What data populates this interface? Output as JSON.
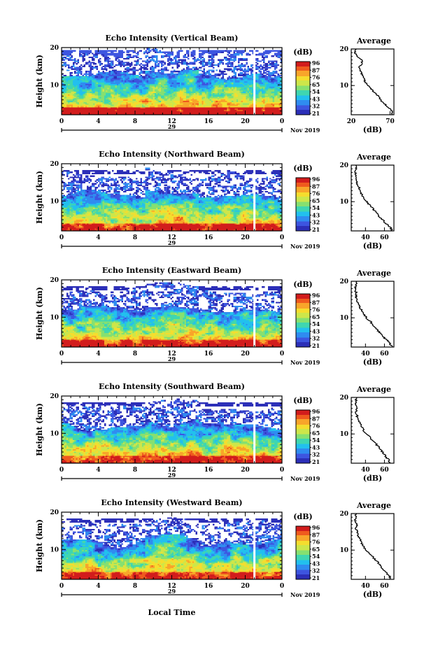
{
  "figure": {
    "xlabel": "Local Time",
    "colorbar_label": "(dB)",
    "colorbar_ticks": [
      "96",
      "87",
      "76",
      "65",
      "54",
      "43",
      "32",
      "21"
    ],
    "date_label": "Nov 2019",
    "day_label": "29",
    "average_title": "Average",
    "average_xlabel": "(dB)",
    "palette": [
      "#2c2fb8",
      "#3d55e0",
      "#2f8cf0",
      "#22c0ee",
      "#3fd6b0",
      "#86e070",
      "#cde64a",
      "#f5dd2e",
      "#f8a52a",
      "#ef5a1e",
      "#d21c1c"
    ],
    "data_gap_hour": 21.0
  },
  "chart_data": [
    {
      "type": "heatmap",
      "title": "Echo Intensity (Vertical Beam)",
      "xlabel": "",
      "ylabel": "Height (km)",
      "xlim": [
        0,
        24
      ],
      "ylim": [
        2,
        20
      ],
      "x_ticks": [
        "0",
        "4",
        "8",
        "12",
        "16",
        "20",
        "0"
      ],
      "y_ticks": [
        "10",
        "20"
      ],
      "colorbar": {
        "label": "(dB)",
        "range": [
          21,
          96
        ],
        "ticks": [
          "96",
          "87",
          "76",
          "65",
          "54",
          "43",
          "32",
          "21"
        ]
      },
      "profile": {
        "title": "Average",
        "xlabel": "(dB)",
        "xlim": [
          20,
          75
        ],
        "x_ticks": [
          "20",
          "70"
        ],
        "y_ticks": [
          "10",
          "20"
        ],
        "height_km": [
          2.0,
          3.0,
          4.0,
          5.0,
          6.0,
          7.0,
          8.0,
          9.0,
          10.0,
          11.0,
          12.0,
          13.0,
          14.0,
          15.0,
          16.0,
          17.0,
          18.0,
          19.0,
          20.0
        ],
        "db": [
          72,
          73,
          68,
          63,
          58,
          56,
          50,
          46,
          42,
          38,
          36,
          34,
          32,
          30,
          34,
          34,
          28,
          25,
          26
        ]
      }
    },
    {
      "type": "heatmap",
      "title": "Echo Intensity (Northward Beam)",
      "xlabel": "",
      "ylabel": "Height (km)",
      "xlim": [
        0,
        24
      ],
      "ylim": [
        2,
        20
      ],
      "x_ticks": [
        "0",
        "4",
        "8",
        "12",
        "16",
        "20",
        "0"
      ],
      "y_ticks": [
        "10",
        "20"
      ],
      "colorbar": {
        "label": "(dB)",
        "range": [
          21,
          96
        ],
        "ticks": [
          "96",
          "87",
          "76",
          "65",
          "54",
          "43",
          "32",
          "21"
        ]
      },
      "profile": {
        "title": "Average",
        "xlabel": "(dB)",
        "xlim": [
          25,
          70
        ],
        "x_ticks": [
          "40",
          "60"
        ],
        "y_ticks": [
          "10",
          "20"
        ],
        "height_km": [
          2.0,
          3.0,
          4.0,
          5.0,
          6.0,
          7.0,
          8.0,
          9.0,
          10.0,
          11.0,
          12.0,
          13.0,
          14.0,
          15.0,
          16.0,
          17.0,
          18.0,
          19.0,
          20.0
        ],
        "db": [
          68,
          66,
          62,
          58,
          54,
          52,
          48,
          45,
          41,
          38,
          36,
          34,
          33,
          31,
          30,
          30,
          29,
          30,
          30
        ]
      }
    },
    {
      "type": "heatmap",
      "title": "Echo Intensity (Eastward Beam)",
      "xlabel": "",
      "ylabel": "Height (km)",
      "xlim": [
        0,
        24
      ],
      "ylim": [
        2,
        20
      ],
      "x_ticks": [
        "0",
        "4",
        "8",
        "12",
        "16",
        "20",
        "0"
      ],
      "y_ticks": [
        "10",
        "20"
      ],
      "colorbar": {
        "label": "(dB)",
        "range": [
          21,
          96
        ],
        "ticks": [
          "96",
          "87",
          "76",
          "65",
          "54",
          "43",
          "32",
          "21"
        ]
      },
      "profile": {
        "title": "Average",
        "xlabel": "(dB)",
        "xlim": [
          25,
          70
        ],
        "x_ticks": [
          "40",
          "60"
        ],
        "y_ticks": [
          "10",
          "20"
        ],
        "height_km": [
          2.0,
          3.0,
          4.0,
          5.0,
          6.0,
          7.0,
          8.0,
          9.0,
          10.0,
          11.0,
          12.0,
          13.0,
          14.0,
          15.0,
          16.0,
          17.0,
          18.0,
          19.0,
          20.0
        ],
        "db": [
          68,
          66,
          62,
          58,
          55,
          51,
          48,
          45,
          41,
          38,
          36,
          34,
          32,
          31,
          30,
          30,
          29,
          30,
          30
        ]
      }
    },
    {
      "type": "heatmap",
      "title": "Echo Intensity (Southward Beam)",
      "xlabel": "",
      "ylabel": "Height (km)",
      "xlim": [
        0,
        24
      ],
      "ylim": [
        2,
        20
      ],
      "x_ticks": [
        "0",
        "4",
        "8",
        "12",
        "16",
        "20",
        "0"
      ],
      "y_ticks": [
        "10",
        "20"
      ],
      "colorbar": {
        "label": "(dB)",
        "range": [
          21,
          96
        ],
        "ticks": [
          "96",
          "87",
          "76",
          "65",
          "54",
          "43",
          "32",
          "21"
        ]
      },
      "profile": {
        "title": "Average",
        "xlabel": "(dB)",
        "xlim": [
          25,
          70
        ],
        "x_ticks": [
          "40",
          "60"
        ],
        "y_ticks": [
          "10",
          "20"
        ],
        "height_km": [
          2.0,
          3.0,
          4.0,
          5.0,
          6.0,
          7.0,
          8.0,
          9.0,
          10.0,
          11.0,
          12.0,
          13.0,
          14.0,
          15.0,
          16.0,
          17.0,
          18.0,
          19.0,
          20.0
        ],
        "db": [
          66,
          64,
          61,
          58,
          55,
          52,
          48,
          45,
          41,
          38,
          36,
          34,
          32,
          31,
          30,
          31,
          29,
          30,
          30
        ]
      }
    },
    {
      "type": "heatmap",
      "title": "Echo Intensity (Westward Beam)",
      "xlabel": "",
      "ylabel": "Height (km)",
      "xlim": [
        0,
        24
      ],
      "ylim": [
        2,
        20
      ],
      "x_ticks": [
        "0",
        "4",
        "8",
        "12",
        "16",
        "20",
        "0"
      ],
      "y_ticks": [
        "10",
        "20"
      ],
      "colorbar": {
        "label": "(dB)",
        "range": [
          21,
          96
        ],
        "ticks": [
          "96",
          "87",
          "76",
          "65",
          "54",
          "43",
          "32",
          "21"
        ]
      },
      "profile": {
        "title": "Average",
        "xlabel": "(dB)",
        "xlim": [
          25,
          70
        ],
        "x_ticks": [
          "40",
          "60"
        ],
        "y_ticks": [
          "10",
          "20"
        ],
        "height_km": [
          2.0,
          3.0,
          4.0,
          5.0,
          6.0,
          7.0,
          8.0,
          9.0,
          10.0,
          11.0,
          12.0,
          13.0,
          14.0,
          15.0,
          16.0,
          17.0,
          18.0,
          19.0,
          20.0
        ],
        "db": [
          67,
          65,
          61,
          58,
          55,
          52,
          48,
          45,
          41,
          38,
          36,
          34,
          32,
          31,
          30,
          31,
          29,
          30,
          30
        ]
      }
    }
  ]
}
